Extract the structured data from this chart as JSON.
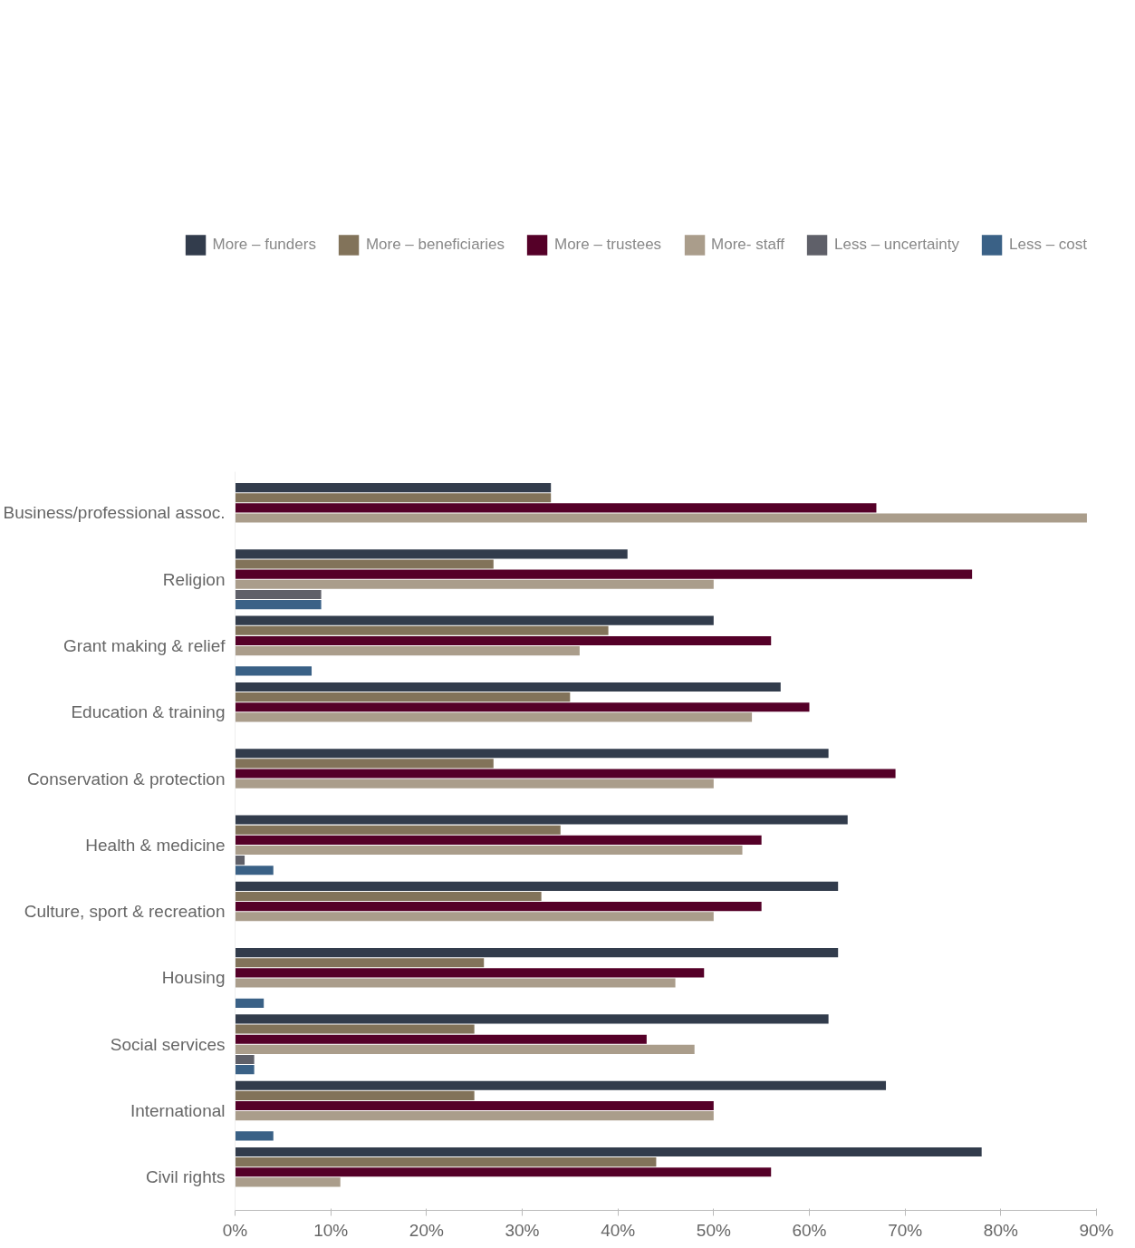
{
  "chart_data": {
    "type": "bar",
    "orientation": "horizontal",
    "legend": "top",
    "grid": false,
    "categories": [
      "Business/professional assoc.",
      "Religion",
      "Grant making & relief",
      "Education & training",
      "Conservation & protection",
      "Health & medicine",
      "Culture, sport & recreation",
      "Housing",
      "Social services",
      "International",
      "Civil rights"
    ],
    "series": [
      {
        "name": "More – funders",
        "color": "#323c4c",
        "values": [
          33,
          41,
          50,
          57,
          62,
          64,
          63,
          63,
          62,
          68,
          78
        ]
      },
      {
        "name": "More – beneficiaries",
        "color": "#82735a",
        "values": [
          33,
          27,
          39,
          35,
          27,
          34,
          32,
          26,
          25,
          25,
          44
        ]
      },
      {
        "name": "More – trustees",
        "color": "#550028",
        "values": [
          67,
          77,
          56,
          60,
          69,
          55,
          55,
          49,
          43,
          50,
          56
        ]
      },
      {
        "name": "More- staff",
        "color": "#aa9d8b",
        "values": [
          89,
          50,
          36,
          54,
          50,
          53,
          50,
          46,
          48,
          50,
          11
        ]
      },
      {
        "name": "Less – uncertainty",
        "color": "#5f6069",
        "values": [
          0,
          9,
          0,
          0,
          0,
          1,
          0,
          0,
          2,
          0,
          0
        ]
      },
      {
        "name": "Less – cost",
        "color": "#3a6186",
        "values": [
          0,
          9,
          8,
          0,
          0,
          4,
          0,
          3,
          2,
          4,
          0
        ]
      }
    ],
    "xlim": [
      0,
      90
    ],
    "xticks": [
      {
        "value": 0,
        "label": "0%"
      },
      {
        "value": 10,
        "label": "10%"
      },
      {
        "value": 20,
        "label": "20%"
      },
      {
        "value": 30,
        "label": "30%"
      },
      {
        "value": 40,
        "label": "40%"
      },
      {
        "value": 50,
        "label": "50%"
      },
      {
        "value": 60,
        "label": "60%"
      },
      {
        "value": 70,
        "label": "70%"
      },
      {
        "value": 80,
        "label": "80%"
      },
      {
        "value": 90,
        "label": "90%"
      }
    ]
  }
}
